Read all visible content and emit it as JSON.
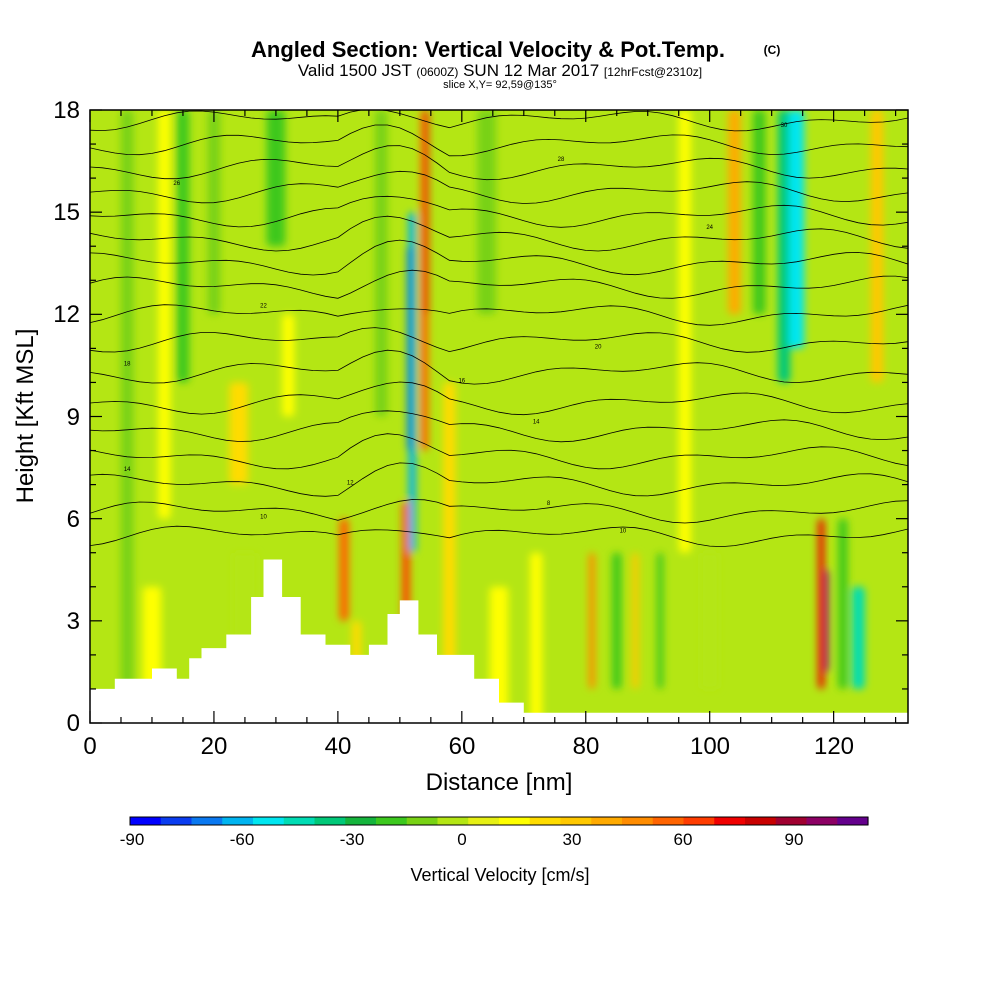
{
  "title": {
    "main": "Angled Section: Vertical Velocity & Pot.Temp.",
    "main_suffix": "(C)",
    "valid_prefix": "Valid 1500 JST",
    "valid_utc": "(0600Z)",
    "valid_date": "SUN 12 Mar 2017",
    "forecast": "[12hrFcst@2310z]",
    "slice": "slice X,Y= 92,59@135°"
  },
  "chart_data": {
    "type": "heatmap",
    "xlabel": "Distance [nm]",
    "ylabel": "Height [Kft MSL]",
    "xlim": [
      0,
      132
    ],
    "ylim": [
      0,
      18
    ],
    "x_ticks": [
      "0",
      "20",
      "40",
      "60",
      "80",
      "100",
      "120"
    ],
    "y_ticks": [
      "0",
      "3",
      "6",
      "9",
      "12",
      "15",
      "18"
    ],
    "colorbar": {
      "title": "Vertical Velocity [cm/s]",
      "tick_labels": [
        "-90",
        "-60",
        "-30",
        "0",
        "30",
        "60",
        "90"
      ],
      "tick_values": [
        -90,
        -60,
        -30,
        0,
        30,
        60,
        90
      ],
      "range": [
        -90,
        110
      ],
      "colors": [
        "#0000ff",
        "#0a3cf0",
        "#0a78f0",
        "#00b4f0",
        "#00e6f0",
        "#00dcb4",
        "#00c878",
        "#14b43c",
        "#3cc81e",
        "#78d214",
        "#b4e614",
        "#e6f014",
        "#ffff00",
        "#ffdc00",
        "#ffc800",
        "#ffaa00",
        "#ff8c00",
        "#ff6400",
        "#ff3c00",
        "#f00000",
        "#c80000",
        "#a00030",
        "#8c0064",
        "#64008c"
      ]
    },
    "contour_labels": [
      {
        "text": "16",
        "x": 60,
        "y": 10.0
      },
      {
        "text": "14",
        "x": 72,
        "y": 8.8
      },
      {
        "text": "20",
        "x": 82,
        "y": 11.0
      },
      {
        "text": "10",
        "x": 28,
        "y": 6.0
      },
      {
        "text": "12",
        "x": 42,
        "y": 7.0
      },
      {
        "text": "24",
        "x": 100,
        "y": 14.5
      },
      {
        "text": "30",
        "x": 112,
        "y": 17.5
      },
      {
        "text": "28",
        "x": 76,
        "y": 16.5
      },
      {
        "text": "22",
        "x": 28,
        "y": 12.2
      },
      {
        "text": "18",
        "x": 6,
        "y": 10.5
      },
      {
        "text": "26",
        "x": 14,
        "y": 15.8
      },
      {
        "text": "14",
        "x": 6,
        "y": 7.4
      },
      {
        "text": "8",
        "x": 74,
        "y": 6.4
      },
      {
        "text": "10",
        "x": 86,
        "y": 5.6
      }
    ]
  }
}
